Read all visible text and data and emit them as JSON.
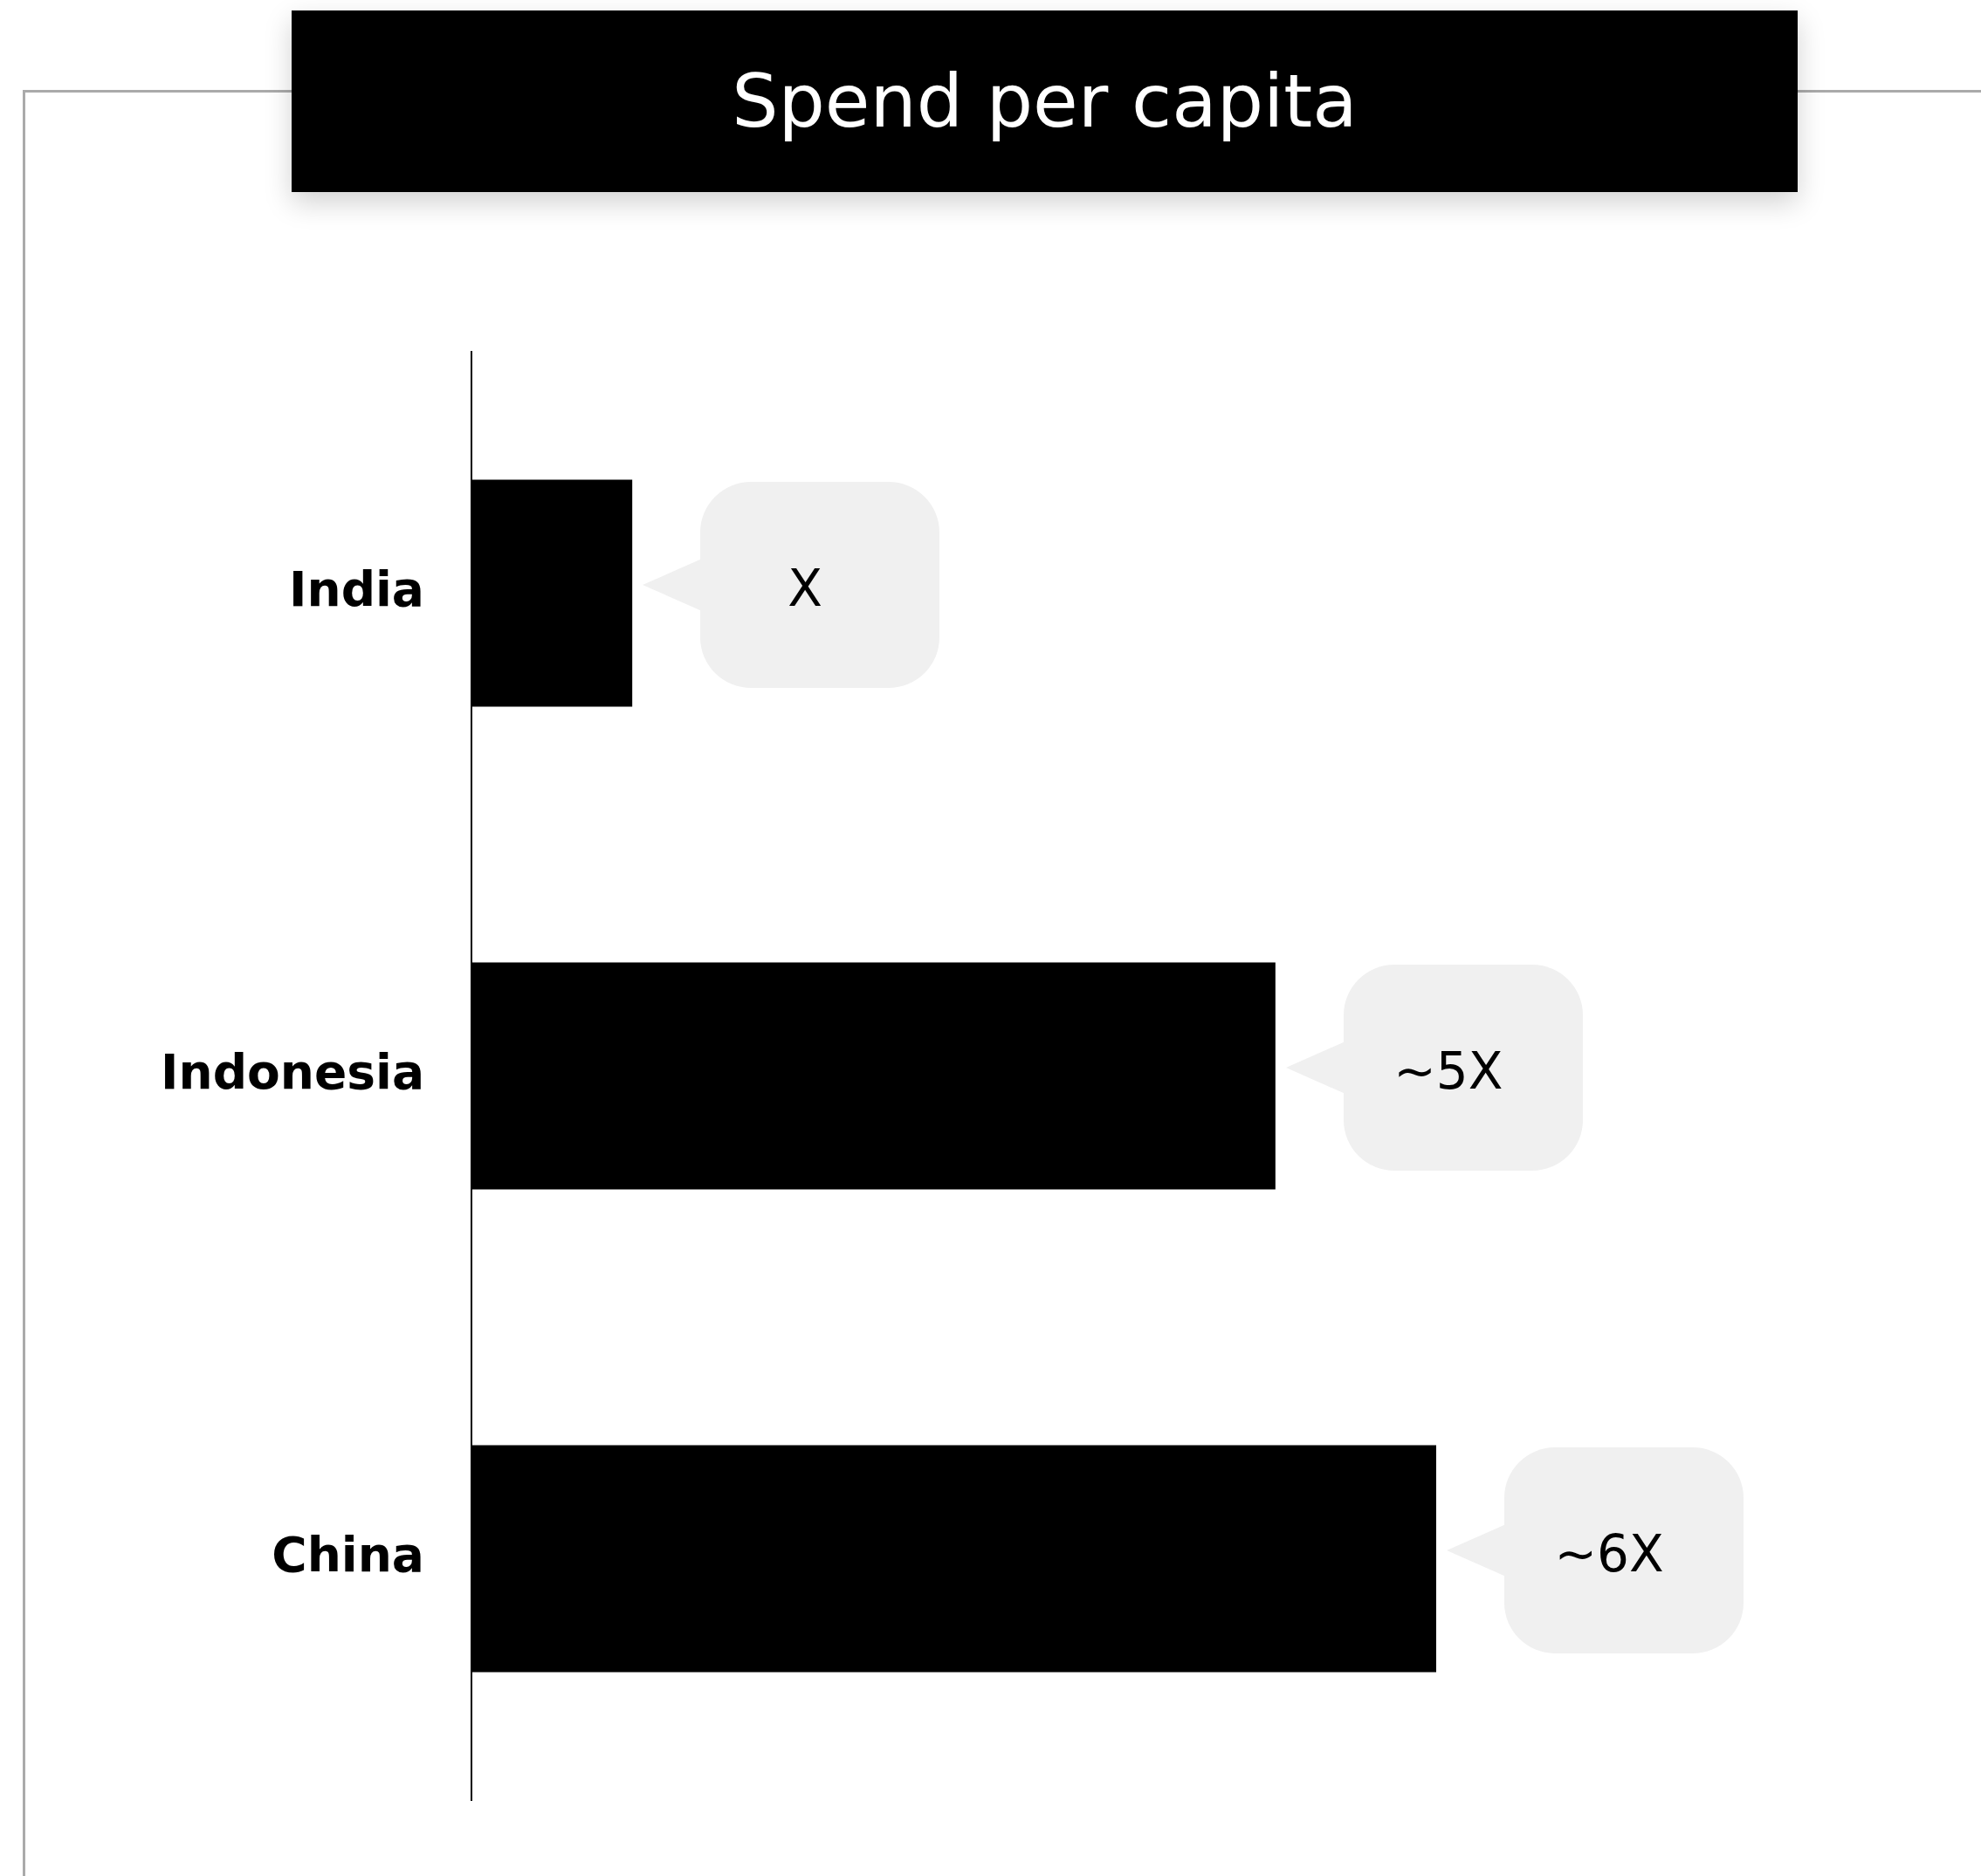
{
  "chart_data": {
    "type": "bar",
    "orientation": "horizontal",
    "title": "Spend per capita",
    "categories": [
      "India",
      "Indonesia",
      "China"
    ],
    "values": [
      1,
      5,
      6
    ],
    "value_labels": [
      "X",
      "~5X",
      "~6X"
    ],
    "tick_labels": "y",
    "color": "#000000"
  }
}
